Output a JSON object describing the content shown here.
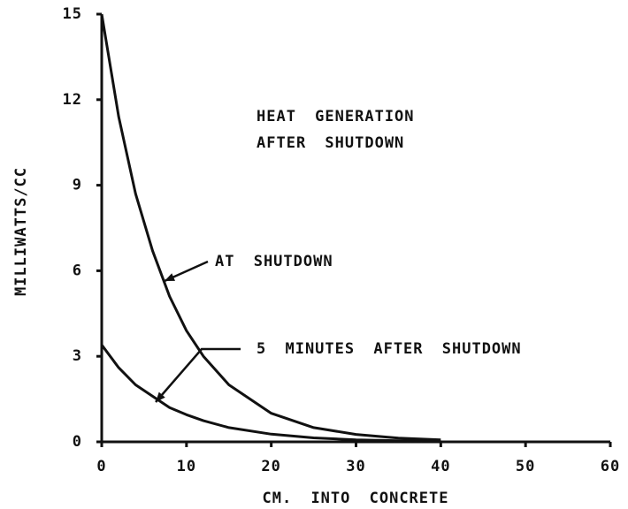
{
  "chart_data": {
    "type": "line",
    "title": [
      "HEAT GENERATION",
      "AFTER SHUTDOWN"
    ],
    "xlabel": "CM. INTO CONCRETE",
    "ylabel": "MILLIWATTS/CC",
    "x": [
      0,
      2,
      4,
      6,
      8,
      10,
      12,
      15,
      20,
      25,
      30,
      35,
      40
    ],
    "series": [
      {
        "name": "AT SHUTDOWN",
        "color": "#111111",
        "values": [
          15,
          11.4,
          8.7,
          6.7,
          5.1,
          3.9,
          3.0,
          2.0,
          1.0,
          0.5,
          0.26,
          0.13,
          0.07
        ]
      },
      {
        "name": "5 MINUTES AFTER SHUTDOWN",
        "color": "#111111",
        "values": [
          3.4,
          2.6,
          2.0,
          1.6,
          1.2,
          0.95,
          0.74,
          0.5,
          0.27,
          0.14,
          0.07,
          0.04,
          0.02
        ]
      }
    ],
    "xlim": [
      0,
      60
    ],
    "xticks": [
      0,
      10,
      20,
      30,
      40,
      50,
      60
    ],
    "ylim": [
      0,
      15
    ],
    "yticks": [
      0,
      3,
      6,
      9,
      12,
      15
    ],
    "grid": false
  }
}
